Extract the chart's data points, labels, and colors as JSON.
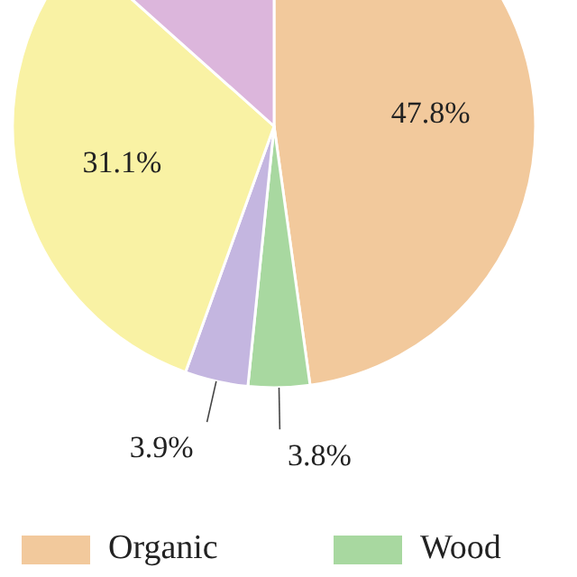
{
  "chart_data": {
    "type": "pie",
    "categories": [
      "Organic",
      "Wood",
      null,
      null,
      null
    ],
    "values": [
      47.8,
      3.8,
      3.9,
      31.1,
      13.4
    ],
    "colors": [
      "#f2c99c",
      "#a8d8a0",
      "#c4b6e0",
      "#f9f2a4",
      "#dcb6dc"
    ],
    "value_labels": [
      "47.8%",
      "3.8%",
      "3.9%",
      "31.1%",
      null
    ],
    "legend": "bottom"
  }
}
